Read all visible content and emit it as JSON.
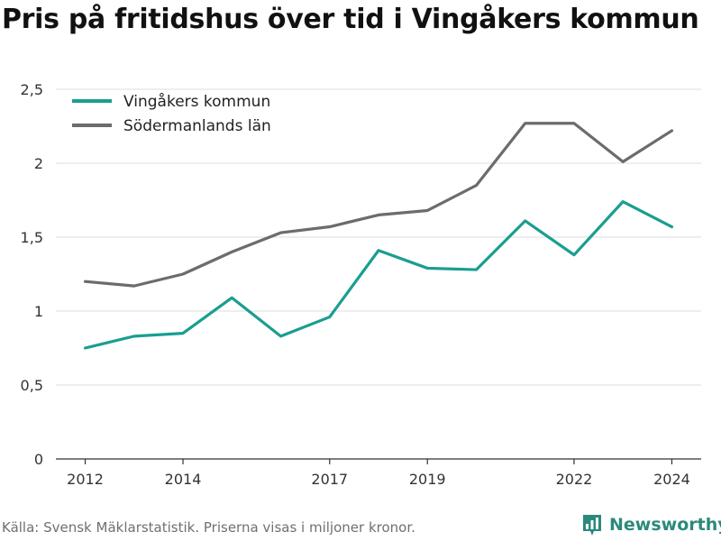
{
  "title": "Pris på fritidshus över tid i Vingåkers kommun",
  "source": "Källa: Svensk Mäklarstatistik. Priserna visas i miljoner kronor.",
  "brand": "Newsworthy",
  "brand_icon": "bar-chart-logo-icon",
  "colors": {
    "vingaker": "#1a9e91",
    "sodermanland": "#6b6b70",
    "grid": "#dcdcdc",
    "axis": "#333333",
    "brand": "#2a8a7c"
  },
  "chart_data": {
    "type": "line",
    "x": [
      2012,
      2013,
      2014,
      2015,
      2016,
      2017,
      2018,
      2019,
      2020,
      2021,
      2022,
      2023,
      2024
    ],
    "x_ticks": [
      2012,
      2014,
      2017,
      2019,
      2022,
      2024
    ],
    "x_tick_labels": [
      "2012",
      "2014",
      "2017",
      "2019",
      "2022",
      "2024"
    ],
    "ylim": [
      0,
      2.5
    ],
    "y_ticks": [
      0,
      0.5,
      1,
      1.5,
      2,
      2.5
    ],
    "y_tick_labels": [
      "0",
      "0,5",
      "1",
      "1,5",
      "2",
      "2,5"
    ],
    "grid": true,
    "legend_position": "top-left",
    "series": [
      {
        "name": "Vingåkers kommun",
        "color": "#1a9e91",
        "values": [
          0.75,
          0.83,
          0.85,
          1.09,
          0.83,
          0.96,
          1.41,
          1.29,
          1.28,
          1.61,
          1.38,
          1.74,
          1.57
        ]
      },
      {
        "name": "Södermanlands län",
        "color": "#6b6b70",
        "values": [
          1.2,
          1.17,
          1.25,
          1.4,
          1.53,
          1.57,
          1.65,
          1.68,
          1.85,
          2.27,
          2.27,
          2.01,
          2.22
        ]
      }
    ]
  }
}
